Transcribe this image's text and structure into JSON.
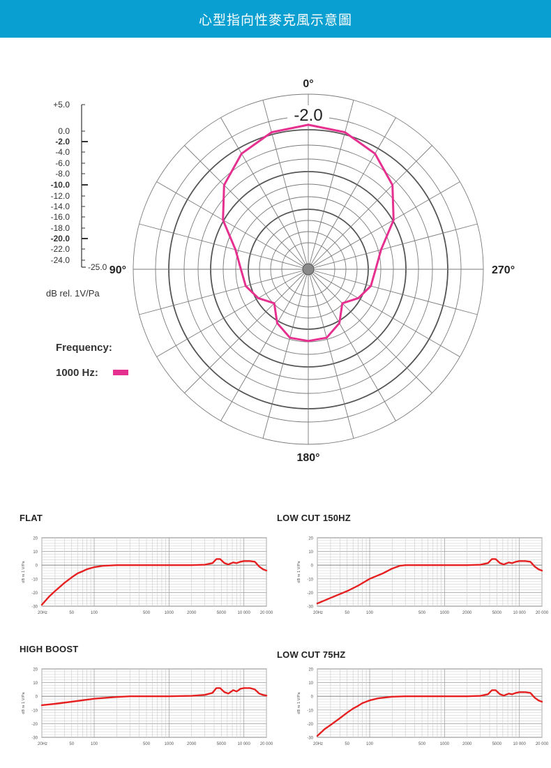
{
  "header": {
    "title": "心型指向性麥克風示意圖"
  },
  "chart_data": [
    {
      "type": "polar",
      "top_value_label": "-2.0",
      "angle_labels": [
        "0°",
        "90°",
        "180°",
        "270°"
      ],
      "scale": {
        "labels": [
          "+5.0",
          "0.0",
          "-2.0",
          "-4.0",
          "-6.0",
          "-8.0",
          "-10.0",
          "-12.0",
          "-14.0",
          "-16.0",
          "-18.0",
          "-20.0",
          "-22.0",
          "-24.0",
          "-25.0"
        ],
        "bold": [
          "-2.0",
          "-10.0",
          "-20.0"
        ],
        "unit": "dB rel. 1V/Pa"
      },
      "legend": {
        "title": "Frequency:",
        "entry": "1000 Hz:",
        "color": "#e6308f"
      },
      "series": [
        {
          "name": "1000 Hz",
          "color": "#e6308f",
          "points": [
            [
              0,
              -2
            ],
            [
              15,
              -2.6
            ],
            [
              30,
              -4.5
            ],
            [
              45,
              -7.8
            ],
            [
              60,
              -12.5
            ],
            [
              75,
              -17.8
            ],
            [
              90,
              -19.6
            ],
            [
              105,
              -20.2
            ],
            [
              120,
              -21.8
            ],
            [
              135,
              -24
            ],
            [
              150,
              -20.8
            ],
            [
              165,
              -18.8
            ],
            [
              180,
              -18.6
            ],
            [
              195,
              -18.8
            ],
            [
              210,
              -20.8
            ],
            [
              225,
              -24
            ],
            [
              240,
              -21.8
            ],
            [
              255,
              -20.2
            ],
            [
              270,
              -19.6
            ],
            [
              285,
              -17.8
            ],
            [
              300,
              -12.5
            ],
            [
              315,
              -7.8
            ],
            [
              330,
              -4.5
            ],
            [
              345,
              -2.6
            ],
            [
              360,
              -2
            ]
          ]
        }
      ]
    },
    {
      "type": "line",
      "title": "FLAT",
      "x_ticks": [
        "20Hz",
        "50",
        "100",
        "500",
        "1000",
        "2000",
        "5000",
        "10 000",
        "20 000"
      ],
      "y_ticks": [
        "20",
        "10",
        "0",
        "-10",
        "-20",
        "-30"
      ],
      "ylabel": "dB re 1 V/Pa",
      "xlim": [
        20,
        20000
      ],
      "ylim": [
        -30,
        20
      ],
      "series": [
        {
          "color": "#e62020",
          "points": [
            [
              20,
              -29
            ],
            [
              25,
              -23
            ],
            [
              30,
              -19
            ],
            [
              40,
              -13
            ],
            [
              50,
              -9
            ],
            [
              60,
              -6
            ],
            [
              70,
              -4.5
            ],
            [
              80,
              -3
            ],
            [
              100,
              -1.5
            ],
            [
              130,
              -0.5
            ],
            [
              200,
              0
            ],
            [
              500,
              0
            ],
            [
              1000,
              0
            ],
            [
              2000,
              0
            ],
            [
              3000,
              0.3
            ],
            [
              3800,
              1.5
            ],
            [
              4300,
              4.5
            ],
            [
              4800,
              4.5
            ],
            [
              5500,
              1.5
            ],
            [
              6200,
              0.5
            ],
            [
              7200,
              2
            ],
            [
              8000,
              1.5
            ],
            [
              9000,
              2.5
            ],
            [
              10000,
              3
            ],
            [
              12000,
              3
            ],
            [
              14000,
              2.5
            ],
            [
              16000,
              -1
            ],
            [
              18000,
              -3
            ],
            [
              20000,
              -4
            ]
          ]
        }
      ]
    },
    {
      "type": "line",
      "title": "LOW CUT 150HZ",
      "x_ticks": [
        "20Hz",
        "50",
        "100",
        "500",
        "1000",
        "2000",
        "5000",
        "10 000",
        "20 000"
      ],
      "y_ticks": [
        "20",
        "10",
        "0",
        "-10",
        "-20",
        "-30"
      ],
      "ylabel": "dB re 1 V/Pa",
      "xlim": [
        20,
        20000
      ],
      "ylim": [
        -30,
        20
      ],
      "series": [
        {
          "color": "#e62020",
          "points": [
            [
              20,
              -28
            ],
            [
              30,
              -24
            ],
            [
              50,
              -19
            ],
            [
              70,
              -15
            ],
            [
              100,
              -10
            ],
            [
              150,
              -6
            ],
            [
              200,
              -2.5
            ],
            [
              250,
              -0.5
            ],
            [
              300,
              0
            ],
            [
              500,
              0
            ],
            [
              1000,
              0
            ],
            [
              2000,
              0
            ],
            [
              3000,
              0.3
            ],
            [
              3800,
              1.5
            ],
            [
              4300,
              4.5
            ],
            [
              4800,
              4.5
            ],
            [
              5500,
              1.5
            ],
            [
              6200,
              0.5
            ],
            [
              7200,
              2
            ],
            [
              8000,
              1.5
            ],
            [
              9000,
              2.5
            ],
            [
              10000,
              3
            ],
            [
              12000,
              3
            ],
            [
              14000,
              2.5
            ],
            [
              16000,
              -1
            ],
            [
              18000,
              -3
            ],
            [
              20000,
              -4
            ]
          ]
        }
      ]
    },
    {
      "type": "line",
      "title": "HIGH BOOST",
      "x_ticks": [
        "20Hz",
        "50",
        "100",
        "500",
        "1000",
        "2000",
        "5000",
        "10 000",
        "20 000"
      ],
      "y_ticks": [
        "20",
        "10",
        "0",
        "-10",
        "-20",
        "-30"
      ],
      "ylabel": "dB re 1 V/Pa",
      "xlim": [
        20,
        20000
      ],
      "ylim": [
        -30,
        20
      ],
      "series": [
        {
          "color": "#e62020",
          "points": [
            [
              20,
              -6.5
            ],
            [
              30,
              -5.5
            ],
            [
              50,
              -4
            ],
            [
              80,
              -2.5
            ],
            [
              100,
              -1.8
            ],
            [
              150,
              -1
            ],
            [
              200,
              -0.5
            ],
            [
              300,
              0
            ],
            [
              500,
              0
            ],
            [
              1000,
              0
            ],
            [
              2000,
              0.3
            ],
            [
              3000,
              1
            ],
            [
              3800,
              2.5
            ],
            [
              4300,
              6
            ],
            [
              4800,
              6
            ],
            [
              5500,
              3
            ],
            [
              6200,
              2
            ],
            [
              7200,
              4.5
            ],
            [
              8000,
              3.5
            ],
            [
              9000,
              5.5
            ],
            [
              10000,
              6
            ],
            [
              12000,
              6
            ],
            [
              14000,
              5
            ],
            [
              16000,
              2
            ],
            [
              18000,
              1
            ],
            [
              20000,
              0.5
            ]
          ]
        }
      ]
    },
    {
      "type": "line",
      "title": "LOW CUT 75HZ",
      "x_ticks": [
        "20Hz",
        "50",
        "100",
        "500",
        "1000",
        "2000",
        "5000",
        "10 000",
        "20 000"
      ],
      "y_ticks": [
        "20",
        "10",
        "0",
        "-10",
        "-20",
        "-30"
      ],
      "ylabel": "dB re 1 V/Pa",
      "xlim": [
        20,
        20000
      ],
      "ylim": [
        -30,
        20
      ],
      "series": [
        {
          "color": "#e62020",
          "points": [
            [
              20,
              -29
            ],
            [
              25,
              -24
            ],
            [
              30,
              -21
            ],
            [
              40,
              -16
            ],
            [
              50,
              -12
            ],
            [
              60,
              -9
            ],
            [
              70,
              -7
            ],
            [
              80,
              -5
            ],
            [
              100,
              -3
            ],
            [
              130,
              -1.5
            ],
            [
              200,
              -0.3
            ],
            [
              300,
              0
            ],
            [
              500,
              0
            ],
            [
              1000,
              0
            ],
            [
              2000,
              0
            ],
            [
              3000,
              0.3
            ],
            [
              3800,
              1.5
            ],
            [
              4300,
              4.5
            ],
            [
              4800,
              4.5
            ],
            [
              5500,
              1.5
            ],
            [
              6200,
              0.5
            ],
            [
              7200,
              2
            ],
            [
              8000,
              1.5
            ],
            [
              9000,
              2.5
            ],
            [
              10000,
              3
            ],
            [
              12000,
              3
            ],
            [
              14000,
              2.5
            ],
            [
              16000,
              -1
            ],
            [
              18000,
              -3
            ],
            [
              20000,
              -4
            ]
          ]
        }
      ]
    }
  ]
}
